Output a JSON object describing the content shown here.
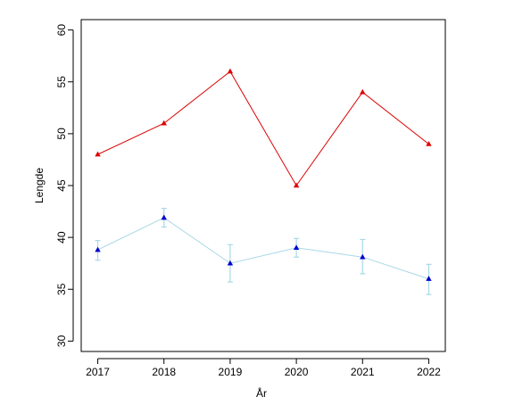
{
  "chart_data": {
    "type": "line",
    "title": "",
    "xlabel": "År",
    "ylabel": "Lengde",
    "x": [
      2017,
      2018,
      2019,
      2020,
      2021,
      2022
    ],
    "xlim": [
      2016.75,
      2022.25
    ],
    "ylim": [
      29,
      61
    ],
    "yticks": [
      30,
      35,
      40,
      45,
      50,
      55,
      60
    ],
    "grid": false,
    "legend": "none",
    "series": [
      {
        "color": "#dd0000",
        "line_color": "#dd0000",
        "marker": "triangle",
        "values": [
          48,
          51,
          56,
          45,
          54,
          49
        ]
      },
      {
        "color": "#0000cc",
        "line_color": "#a8d8e8",
        "marker": "triangle",
        "values": [
          38.8,
          41.9,
          37.5,
          39.0,
          38.1,
          36.0
        ],
        "error_low": [
          37.8,
          41.0,
          35.7,
          38.1,
          36.5,
          34.5
        ],
        "error_high": [
          39.7,
          42.8,
          39.3,
          39.9,
          39.8,
          37.4
        ]
      }
    ]
  }
}
